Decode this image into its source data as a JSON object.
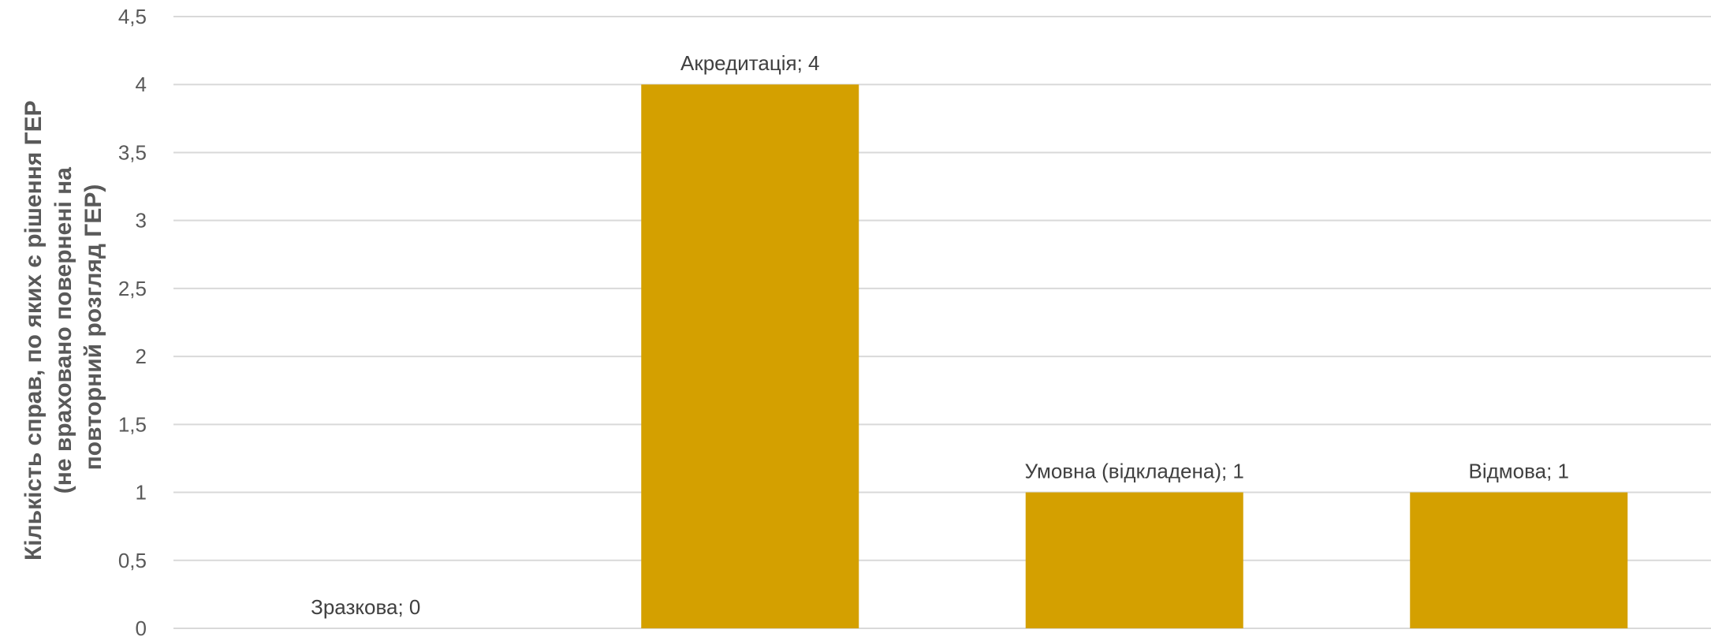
{
  "chart_data": {
    "type": "bar",
    "categories": [
      "Зразкова",
      "Акредитація",
      "Умовна (відкладена)",
      "Відмова"
    ],
    "values": [
      0,
      4,
      1,
      1
    ],
    "data_labels": [
      "Зразкова; 0",
      "Акредитація; 4",
      "Умовна (відкладена); 1",
      "Відмова; 1"
    ],
    "ylabel_lines": [
      "Кількість справ, по яких є рішення ГЕР",
      "(не враховано повернені на",
      "повторний розгляд ГЕР)"
    ],
    "xlabel": "",
    "ylim": [
      0,
      4.5
    ],
    "yticks": [
      "0",
      "0,5",
      "1",
      "1,5",
      "2",
      "2,5",
      "3",
      "3,5",
      "4",
      "4,5"
    ],
    "grid": true,
    "legend": "none",
    "bar_color": "#D4A000",
    "grid_color": "#D9D9D9"
  }
}
